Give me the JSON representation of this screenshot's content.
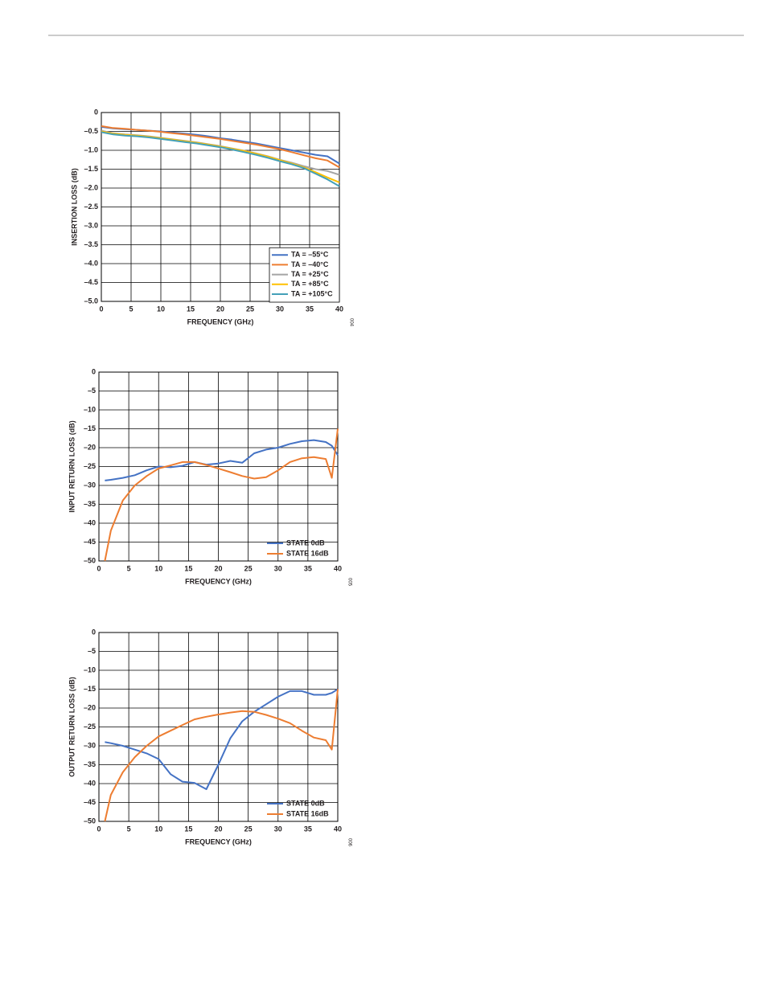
{
  "chart_data": [
    {
      "type": "line",
      "figure_id": "004",
      "xlabel": "FREQUENCY (GHz)",
      "ylabel": "INSERTION LOSS (dB)",
      "x": [
        0,
        2,
        4,
        6,
        8,
        10,
        12,
        14,
        16,
        18,
        20,
        22,
        24,
        26,
        28,
        30,
        32,
        34,
        36,
        38,
        40
      ],
      "xlim": [
        0,
        40
      ],
      "xticks": [
        0,
        5,
        10,
        15,
        20,
        25,
        30,
        35,
        40
      ],
      "ylim": [
        -5,
        0
      ],
      "yticks": [
        0,
        {
          "value": -0.5,
          "label": "–0.5"
        },
        {
          "value": -1,
          "label": "–1.0"
        },
        {
          "value": -1.5,
          "label": "–1.5"
        },
        {
          "value": -2,
          "label": "–2.0"
        },
        {
          "value": -2.5,
          "label": "–2.5"
        },
        {
          "value": -3,
          "label": "–3.0"
        },
        {
          "value": -3.5,
          "label": "–3.5"
        },
        {
          "value": -4,
          "label": "–4.0"
        },
        {
          "value": -4.5,
          "label": "–4.5"
        },
        {
          "value": -5,
          "label": "–5.0"
        }
      ],
      "grid": true,
      "legend": "lower right",
      "legend_box": true,
      "series": [
        {
          "name": "TA = –55°C",
          "color": "#4472c4",
          "values": [
            -0.38,
            -0.42,
            -0.44,
            -0.46,
            -0.48,
            -0.5,
            -0.53,
            -0.56,
            -0.59,
            -0.63,
            -0.68,
            -0.72,
            -0.77,
            -0.82,
            -0.88,
            -0.94,
            -1.0,
            -1.06,
            -1.12,
            -1.16,
            -1.35
          ]
        },
        {
          "name": "TA = –40°C",
          "color": "#ed7d31",
          "values": [
            -0.36,
            -0.41,
            -0.43,
            -0.46,
            -0.48,
            -0.51,
            -0.55,
            -0.58,
            -0.62,
            -0.66,
            -0.7,
            -0.75,
            -0.8,
            -0.85,
            -0.91,
            -0.97,
            -1.05,
            -1.13,
            -1.21,
            -1.27,
            -1.45
          ]
        },
        {
          "name": "TA = +25°C",
          "color": "#a5a5a5",
          "values": [
            -0.48,
            -0.55,
            -0.58,
            -0.6,
            -0.63,
            -0.67,
            -0.71,
            -0.75,
            -0.79,
            -0.84,
            -0.89,
            -0.95,
            -1.01,
            -1.08,
            -1.16,
            -1.25,
            -1.33,
            -1.42,
            -1.5,
            -1.55,
            -1.65
          ]
        },
        {
          "name": "TA = +85°C",
          "color": "#ffc000",
          "values": [
            -0.5,
            -0.56,
            -0.59,
            -0.61,
            -0.64,
            -0.68,
            -0.72,
            -0.76,
            -0.8,
            -0.85,
            -0.9,
            -0.96,
            -1.02,
            -1.09,
            -1.17,
            -1.26,
            -1.35,
            -1.45,
            -1.58,
            -1.72,
            -1.85
          ]
        },
        {
          "name": "TA = +105°C",
          "color": "#44a0b8",
          "values": [
            -0.52,
            -0.58,
            -0.61,
            -0.63,
            -0.66,
            -0.7,
            -0.74,
            -0.78,
            -0.82,
            -0.87,
            -0.92,
            -0.98,
            -1.05,
            -1.12,
            -1.2,
            -1.29,
            -1.37,
            -1.47,
            -1.62,
            -1.77,
            -1.95
          ]
        }
      ]
    },
    {
      "type": "line",
      "figure_id": "005",
      "xlabel": "FREQUENCY (GHz)",
      "ylabel": "INPUT RETURN LOSS (dB)",
      "x": [
        1,
        2,
        4,
        6,
        8,
        10,
        12,
        14,
        16,
        18,
        20,
        22,
        24,
        26,
        28,
        30,
        32,
        34,
        36,
        38,
        39,
        40
      ],
      "xlim": [
        0,
        40
      ],
      "xticks": [
        0,
        5,
        10,
        15,
        20,
        25,
        30,
        35,
        40
      ],
      "ylim": [
        -50,
        0
      ],
      "yticks": [
        0,
        {
          "value": -5,
          "label": "–5"
        },
        {
          "value": -10,
          "label": "–10"
        },
        {
          "value": -15,
          "label": "–15"
        },
        {
          "value": -20,
          "label": "–20"
        },
        {
          "value": -25,
          "label": "–25"
        },
        {
          "value": -30,
          "label": "–30"
        },
        {
          "value": -35,
          "label": "–35"
        },
        {
          "value": -40,
          "label": "–40"
        },
        {
          "value": -45,
          "label": "–45"
        },
        {
          "value": -50,
          "label": "–50"
        }
      ],
      "grid": true,
      "legend": "lower right",
      "legend_box": false,
      "series": [
        {
          "name": "STATE 0dB",
          "color": "#4472c4",
          "values": [
            -28.7,
            -28.5,
            -28,
            -27.3,
            -26,
            -25,
            -25.2,
            -24.8,
            -23.8,
            -24.5,
            -24.2,
            -23.5,
            -24,
            -21.5,
            -20.5,
            -20,
            -19,
            -18.3,
            -18,
            -18.5,
            -19.5,
            -22
          ]
        },
        {
          "name": "STATE 16dB",
          "color": "#ed7d31",
          "values": [
            -50,
            -42,
            -34,
            -30,
            -27.5,
            -25.5,
            -24.7,
            -23.8,
            -23.8,
            -24.6,
            -25.5,
            -26.5,
            -27.5,
            -28.2,
            -27.8,
            -26,
            -23.8,
            -22.8,
            -22.5,
            -23,
            -28,
            -15
          ]
        }
      ]
    },
    {
      "type": "line",
      "figure_id": "006",
      "xlabel": "FREQUENCY (GHz)",
      "ylabel": "OUTPUT RETURN LOSS (dB)",
      "x": [
        1,
        2,
        4,
        6,
        8,
        10,
        12,
        14,
        16,
        18,
        20,
        22,
        24,
        26,
        28,
        30,
        32,
        34,
        36,
        38,
        39,
        40
      ],
      "xlim": [
        0,
        40
      ],
      "xticks": [
        0,
        5,
        10,
        15,
        20,
        25,
        30,
        35,
        40
      ],
      "ylim": [
        -50,
        0
      ],
      "yticks": [
        0,
        {
          "value": -5,
          "label": "–5"
        },
        {
          "value": -10,
          "label": "–10"
        },
        {
          "value": -15,
          "label": "–15"
        },
        {
          "value": -20,
          "label": "–20"
        },
        {
          "value": -25,
          "label": "–25"
        },
        {
          "value": -30,
          "label": "–30"
        },
        {
          "value": -35,
          "label": "–35"
        },
        {
          "value": -40,
          "label": "–40"
        },
        {
          "value": -45,
          "label": "–45"
        },
        {
          "value": -50,
          "label": "–50"
        }
      ],
      "grid": true,
      "legend": "lower right",
      "legend_box": false,
      "series": [
        {
          "name": "STATE 0dB",
          "color": "#4472c4",
          "values": [
            -29,
            -29.3,
            -30,
            -31,
            -32,
            -33.5,
            -37.5,
            -39.5,
            -39.8,
            -41.5,
            -35,
            -28,
            -23.5,
            -21,
            -19,
            -17,
            -15.5,
            -15.5,
            -16.5,
            -16.5,
            -16,
            -15
          ]
        },
        {
          "name": "STATE 16dB",
          "color": "#ed7d31",
          "values": [
            -50,
            -43,
            -37,
            -33,
            -30,
            -27.5,
            -26,
            -24.5,
            -23,
            -22.3,
            -21.7,
            -21.2,
            -20.8,
            -21,
            -21.8,
            -22.8,
            -24,
            -26,
            -27.8,
            -28.5,
            -31,
            -15
          ]
        }
      ]
    }
  ]
}
